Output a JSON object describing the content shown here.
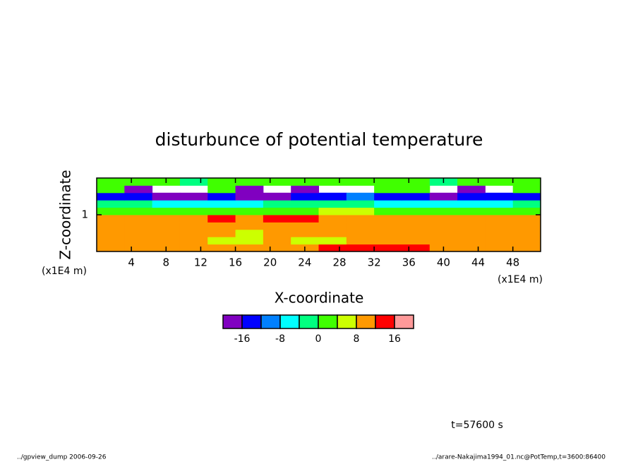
{
  "chart_data": {
    "type": "contour",
    "title": "disturbunce of potential temperature",
    "x_label": "X-coordinate",
    "y_label": "Z-coordinate",
    "x_unit": "(x1E4 m)",
    "y_unit": "(x1E4 m)",
    "time_label": "t=57600 s",
    "footer_left": "../gpview_dump  2006-09-26",
    "footer_right": "../arare-Nakajima1994_01.nc@PotTemp,t=3600:86400",
    "xlim": [
      0,
      51.2
    ],
    "xticks": [
      4,
      8,
      12,
      16,
      20,
      24,
      28,
      32,
      36,
      40,
      44,
      48
    ],
    "ylim": [
      0,
      2
    ],
    "yticks": [
      1
    ],
    "x": [
      1.6,
      4.8,
      8,
      11.2,
      14.4,
      17.6,
      20.8,
      24,
      27.2,
      30.4,
      33.6,
      36.8,
      40,
      43.2,
      46.4,
      49.6
    ],
    "y": [
      0.1,
      0.3,
      0.5,
      0.7,
      0.9,
      1.1,
      1.3,
      1.5,
      1.7,
      1.9
    ],
    "z": [
      [
        10,
        10,
        10,
        10,
        10,
        10,
        10,
        10,
        14,
        14,
        14,
        14,
        10,
        10,
        10,
        10
      ],
      [
        10,
        10,
        10,
        10,
        6,
        6,
        10,
        6,
        6,
        10,
        10,
        10,
        10,
        10,
        10,
        10
      ],
      [
        10,
        10,
        10,
        10,
        10,
        6,
        10,
        10,
        10,
        10,
        10,
        10,
        10,
        10,
        10,
        10
      ],
      [
        10,
        10,
        10,
        10,
        10,
        10,
        10,
        10,
        10,
        10,
        10,
        10,
        10,
        10,
        10,
        10
      ],
      [
        10,
        10,
        10,
        10,
        14,
        10,
        14,
        14,
        10,
        10,
        10,
        10,
        10,
        10,
        10,
        10
      ],
      [
        2,
        2,
        2,
        2,
        2,
        2,
        2,
        2,
        6,
        6,
        2,
        2,
        2,
        2,
        2,
        2
      ],
      [
        -2,
        -2,
        -6,
        -6,
        -6,
        -6,
        -2,
        -2,
        -2,
        -2,
        -6,
        -6,
        -6,
        -6,
        -6,
        -2
      ],
      [
        -14,
        -14,
        -18,
        -18,
        -14,
        -18,
        -18,
        -14,
        -14,
        -10,
        -14,
        -14,
        -18,
        -14,
        -14,
        -14
      ],
      [
        2,
        -18,
        null,
        null,
        2,
        -18,
        null,
        -18,
        null,
        null,
        2,
        2,
        null,
        -18,
        null,
        2
      ],
      [
        2,
        2,
        2,
        -2,
        2,
        2,
        2,
        2,
        2,
        2,
        2,
        2,
        -2,
        2,
        2,
        2
      ]
    ],
    "levels": [
      -20,
      -16,
      -12,
      -8,
      -4,
      0,
      4,
      8,
      12,
      16,
      20
    ],
    "colors": [
      "#8000c0",
      "#0000ff",
      "#0080ff",
      "#00ffff",
      "#00ff80",
      "#40ff00",
      "#ccff00",
      "#ff9900",
      "#ff0000",
      "#ff9999"
    ],
    "colorbar_ticks": [
      -16,
      -8,
      0,
      8,
      16
    ]
  }
}
